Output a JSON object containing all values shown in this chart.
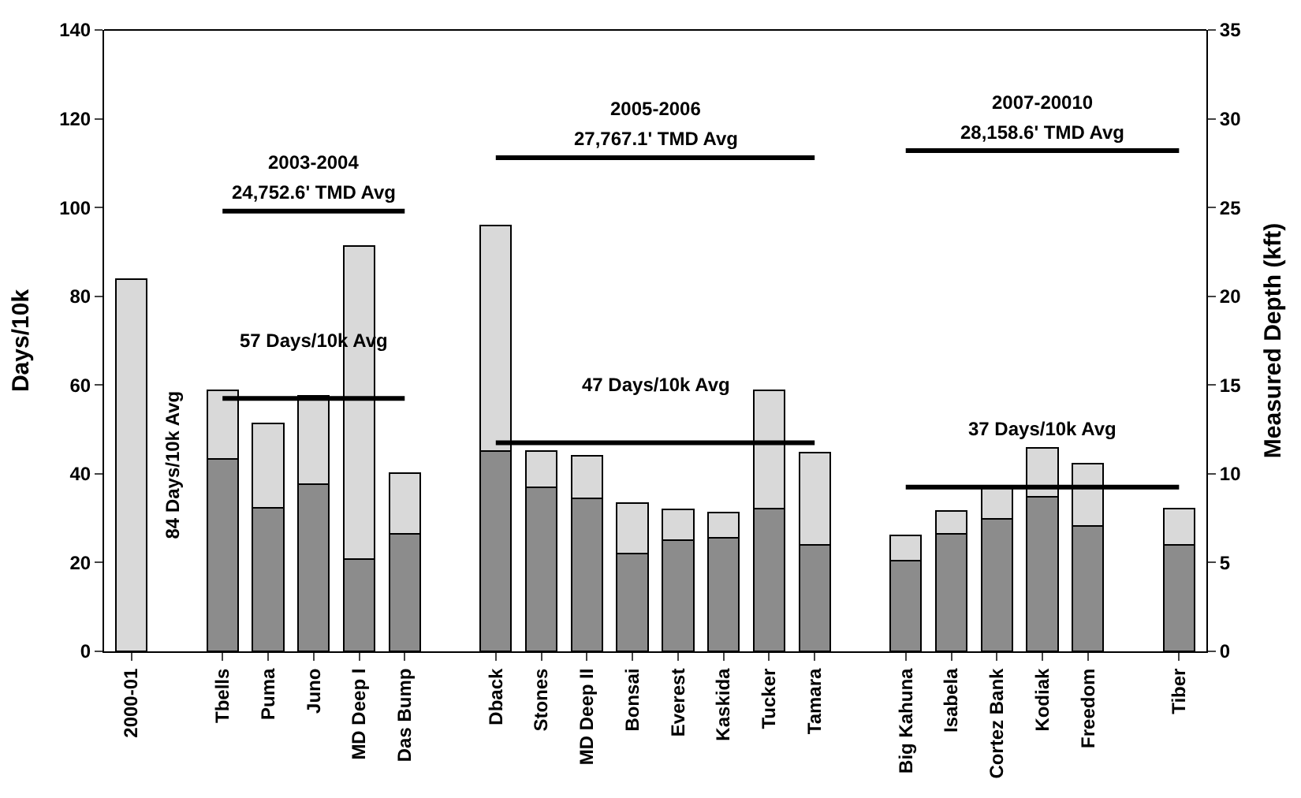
{
  "chart_data": {
    "type": "bar",
    "stacked": true,
    "categories": [
      "2000-01",
      null,
      "Tbells",
      "Puma",
      "Juno",
      "MD Deep I",
      "Das Bump",
      null,
      "Dback",
      "Stones",
      "MD Deep II",
      "Bonsai",
      "Everest",
      "Kaskida",
      "Tucker",
      "Tamara",
      null,
      "Big Kahuna",
      "Isabela",
      "Cortez Bank",
      "Kodiak",
      "Freedom",
      null,
      "Tiber"
    ],
    "series": [
      {
        "color": "#8c8c8c",
        "values": [
          0,
          null,
          43.4,
          32.4,
          37.6,
          20.8,
          26.5,
          null,
          45.2,
          36.9,
          34.5,
          22.1,
          25.0,
          25.6,
          32.2,
          23.9,
          null,
          20.4,
          26.5,
          29.8,
          34.8,
          28.3,
          null,
          23.9
        ]
      },
      {
        "color": "#d9d9d9",
        "values": [
          83.8,
          null,
          15.4,
          18.9,
          20.0,
          70.5,
          13.6,
          null,
          50.8,
          8.2,
          9.6,
          11.3,
          7.0,
          5.6,
          26.6,
          20.8,
          null,
          5.7,
          5.1,
          7.6,
          11.1,
          13.9,
          null,
          8.3
        ]
      },
      {
        "type": "line",
        "axis": "y2",
        "name": "24,752.6' TMD Avg",
        "color": "#000000",
        "x": [
          "Tbells",
          "Das Bump"
        ],
        "values": [
          24.8,
          24.8
        ]
      },
      {
        "type": "line",
        "axis": "y2",
        "name": "27,767.1' TMD Avg",
        "color": "#000000",
        "x": [
          "Dback",
          "Tamara"
        ],
        "values": [
          27.8,
          27.8
        ]
      },
      {
        "type": "line",
        "axis": "y2",
        "name": "28,158.6' TMD Avg",
        "color": "#000000",
        "x": [
          "Big Kahuna",
          "Tiber"
        ],
        "values": [
          28.2,
          28.2
        ]
      },
      {
        "type": "line",
        "name": "57 Days/10k Avg",
        "color": "#000000",
        "x": [
          "Tbells",
          "Das Bump"
        ],
        "values": [
          57,
          57
        ]
      },
      {
        "type": "line",
        "name": "47 Days/10k Avg",
        "color": "#000000",
        "x": [
          "Dback",
          "Tamara"
        ],
        "values": [
          47,
          47
        ]
      },
      {
        "type": "line",
        "name": "37 Days/10k Avg",
        "color": "#000000",
        "x": [
          "Big Kahuna",
          "Tiber"
        ],
        "values": [
          37,
          37
        ]
      }
    ],
    "annotations": [
      "2003-2004",
      "2005-2006",
      "2007-20010",
      "84 Days/10k Avg"
    ],
    "ylabel": "Days/10k",
    "y2label": "Measured Depth (kft)",
    "ylim": [
      0,
      140
    ],
    "yticks": [
      0,
      20,
      40,
      60,
      80,
      100,
      120,
      140
    ],
    "y2lim": [
      0,
      35
    ],
    "y2ticks": [
      0,
      5,
      10,
      15,
      20,
      25,
      30,
      35
    ],
    "marker": "none",
    "line_style": "solid"
  }
}
